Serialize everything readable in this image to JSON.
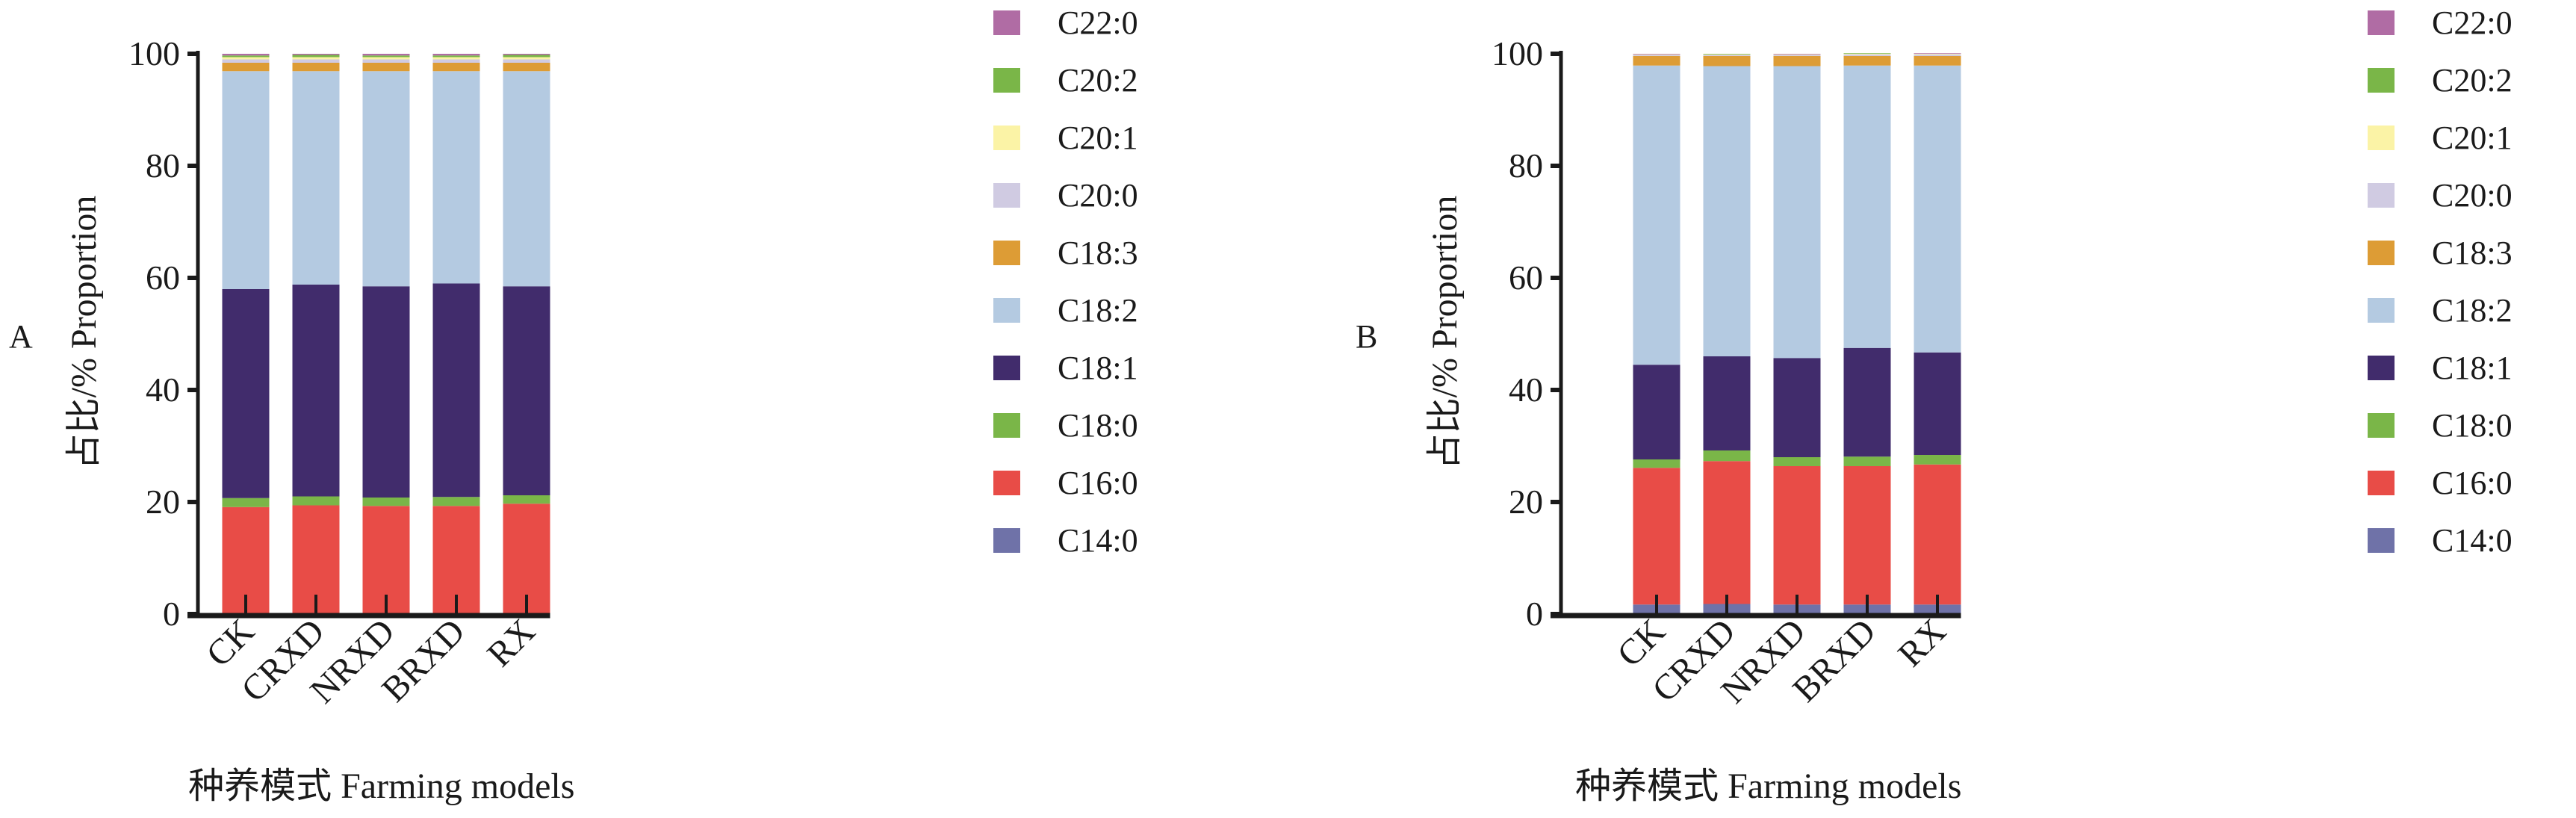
{
  "chart_data": [
    {
      "type": "bar",
      "stacked": true,
      "panel_label": "A",
      "ylabel": "占比/% Proportion",
      "xlabel": "种养模式 Farming models",
      "ylim": [
        0,
        100
      ],
      "yticks": [
        "0",
        "20",
        "40",
        "60",
        "80",
        "100"
      ],
      "categories": [
        "CK",
        "CRXD",
        "NRXD",
        "BRXD",
        "RX"
      ],
      "legend_position": "right",
      "series": [
        {
          "name": "C14:0",
          "color": "#6f72a8",
          "values": [
            0.2,
            0.2,
            0.2,
            0.2,
            0.2
          ]
        },
        {
          "name": "C16:0",
          "color": "#e84c47",
          "values": [
            18.9,
            19.2,
            19.1,
            19.1,
            19.5
          ]
        },
        {
          "name": "C18:0",
          "color": "#7ab648",
          "values": [
            1.6,
            1.6,
            1.5,
            1.6,
            1.5
          ]
        },
        {
          "name": "C18:1",
          "color": "#412c6c",
          "values": [
            37.3,
            37.8,
            37.7,
            38.1,
            37.3
          ]
        },
        {
          "name": "C18:2",
          "color": "#b4cae1",
          "values": [
            38.9,
            38.1,
            38.4,
            37.9,
            38.4
          ]
        },
        {
          "name": "C18:3",
          "color": "#dd9c35",
          "values": [
            1.5,
            1.5,
            1.5,
            1.5,
            1.5
          ]
        },
        {
          "name": "C20:0",
          "color": "#d0cbe2",
          "values": [
            0.6,
            0.6,
            0.6,
            0.6,
            0.6
          ]
        },
        {
          "name": "C20:1",
          "color": "#fbf3a6",
          "values": [
            0.4,
            0.4,
            0.4,
            0.4,
            0.4
          ]
        },
        {
          "name": "C20:2",
          "color": "#7ab648",
          "values": [
            0.3,
            0.4,
            0.3,
            0.3,
            0.4
          ]
        },
        {
          "name": "C22:0",
          "color": "#b06ca4",
          "values": [
            0.3,
            0.2,
            0.3,
            0.3,
            0.2
          ]
        }
      ]
    },
    {
      "type": "bar",
      "stacked": true,
      "panel_label": "B",
      "ylabel": "占比/% Proportion",
      "xlabel": "种养模式 Farming models",
      "ylim": [
        0,
        100
      ],
      "yticks": [
        "0",
        "20",
        "40",
        "60",
        "80",
        "100"
      ],
      "categories": [
        "CK",
        "CRXD",
        "NRXD",
        "BRXD",
        "RX"
      ],
      "legend_position": "right",
      "series": [
        {
          "name": "C14:0",
          "color": "#6f72a8",
          "values": [
            1.7,
            1.8,
            1.7,
            1.7,
            1.7
          ]
        },
        {
          "name": "C16:0",
          "color": "#e84c47",
          "values": [
            24.4,
            25.5,
            24.7,
            24.7,
            25.0
          ]
        },
        {
          "name": "C18:0",
          "color": "#7ab648",
          "values": [
            1.5,
            1.9,
            1.6,
            1.7,
            1.7
          ]
        },
        {
          "name": "C18:1",
          "color": "#412c6c",
          "values": [
            16.9,
            16.8,
            17.7,
            19.4,
            18.3
          ]
        },
        {
          "name": "C18:2",
          "color": "#b4cae1",
          "values": [
            53.4,
            51.8,
            52.1,
            50.4,
            51.2
          ]
        },
        {
          "name": "C18:3",
          "color": "#dd9c35",
          "values": [
            1.7,
            1.8,
            1.8,
            1.7,
            1.7
          ]
        },
        {
          "name": "C20:0",
          "color": "#d0cbe2",
          "values": [
            0.2,
            0.2,
            0.2,
            0.3,
            0.3
          ]
        },
        {
          "name": "C20:1",
          "color": "#fbf3a6",
          "values": [
            0.1,
            0.1,
            0.1,
            0.1,
            0.1
          ]
        },
        {
          "name": "C20:2",
          "color": "#7ab648",
          "values": [
            0.0,
            0.1,
            0.0,
            0.1,
            0.0
          ]
        },
        {
          "name": "C22:0",
          "color": "#b06ca4",
          "values": [
            0.1,
            0.0,
            0.1,
            0.0,
            0.1
          ]
        }
      ]
    }
  ]
}
